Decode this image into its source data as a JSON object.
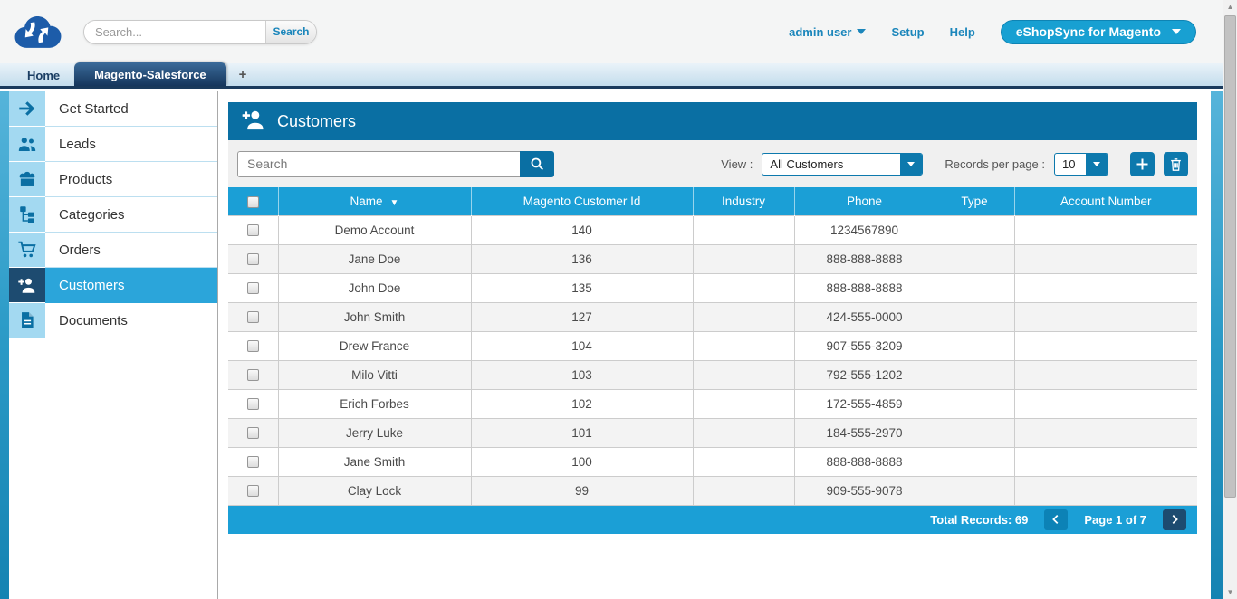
{
  "header": {
    "search_placeholder": "Search...",
    "search_button_label": "Search",
    "user_menu_label": "admin user",
    "setup_link": "Setup",
    "help_link": "Help",
    "app_button_label": "eShopSync for Magento"
  },
  "tabs": [
    {
      "label": "Home",
      "active": false
    },
    {
      "label": "Magento-Salesforce",
      "active": true
    },
    {
      "label": "+",
      "active": false,
      "add_tab": true
    }
  ],
  "sidebar": {
    "items": [
      {
        "label": "Get Started",
        "icon": "arrow-right-icon",
        "active": false
      },
      {
        "label": "Leads",
        "icon": "people-icon",
        "active": false
      },
      {
        "label": "Products",
        "icon": "product-box-icon",
        "active": false
      },
      {
        "label": "Categories",
        "icon": "category-tree-icon",
        "active": false
      },
      {
        "label": "Orders",
        "icon": "cart-icon",
        "active": false
      },
      {
        "label": "Customers",
        "icon": "person-add-icon",
        "active": true
      },
      {
        "label": "Documents",
        "icon": "document-icon",
        "active": false
      }
    ]
  },
  "panel": {
    "title": "Customers",
    "title_icon": "person-add-icon",
    "toolbar": {
      "search_placeholder": "Search",
      "view_label": "View :",
      "view_value": "All Customers",
      "records_label": "Records per page :",
      "records_value": "10"
    },
    "table": {
      "columns": [
        "Name",
        "Magento Customer Id",
        "Industry",
        "Phone",
        "Type",
        "Account Number"
      ],
      "sorted_by": "Name",
      "sort_direction": "desc",
      "rows": [
        {
          "name": "Demo Account",
          "magento_customer_id": "140",
          "industry": "",
          "phone": "1234567890",
          "type": "",
          "account_number": ""
        },
        {
          "name": "Jane Doe",
          "magento_customer_id": "136",
          "industry": "",
          "phone": "888-888-8888",
          "type": "",
          "account_number": ""
        },
        {
          "name": "John Doe",
          "magento_customer_id": "135",
          "industry": "",
          "phone": "888-888-8888",
          "type": "",
          "account_number": ""
        },
        {
          "name": "John Smith",
          "magento_customer_id": "127",
          "industry": "",
          "phone": "424-555-0000",
          "type": "",
          "account_number": ""
        },
        {
          "name": "Drew France",
          "magento_customer_id": "104",
          "industry": "",
          "phone": "907-555-3209",
          "type": "",
          "account_number": ""
        },
        {
          "name": "Milo Vitti",
          "magento_customer_id": "103",
          "industry": "",
          "phone": "792-555-1202",
          "type": "",
          "account_number": ""
        },
        {
          "name": "Erich Forbes",
          "magento_customer_id": "102",
          "industry": "",
          "phone": "172-555-4859",
          "type": "",
          "account_number": ""
        },
        {
          "name": "Jerry Luke",
          "magento_customer_id": "101",
          "industry": "",
          "phone": "184-555-2970",
          "type": "",
          "account_number": ""
        },
        {
          "name": "Jane Smith",
          "magento_customer_id": "100",
          "industry": "",
          "phone": "888-888-8888",
          "type": "",
          "account_number": ""
        },
        {
          "name": "Clay Lock",
          "magento_customer_id": "99",
          "industry": "",
          "phone": "909-555-9078",
          "type": "",
          "account_number": ""
        }
      ]
    },
    "footer": {
      "total_records": "Total Records: 69",
      "page_info": "Page 1 of 7"
    }
  },
  "icons": {
    "logo": "cloud-sync-icon",
    "toolbar_search": "search-icon",
    "add": "plus-icon",
    "delete": "trash-icon",
    "prev": "chevron-left-icon",
    "next": "chevron-right-icon",
    "dropdown": "caret-down-icon"
  },
  "colors": {
    "panel_header": "#0a6fa3",
    "table_header": "#1b9fd6",
    "active_navy": "#1d4b70",
    "sidebar_icon_cell": "#a3d9f1",
    "accent_button": "#0d79ad",
    "link": "#1b86bb",
    "app_pill": "#18a0d2",
    "row_stripe": "#f3f3f3"
  }
}
